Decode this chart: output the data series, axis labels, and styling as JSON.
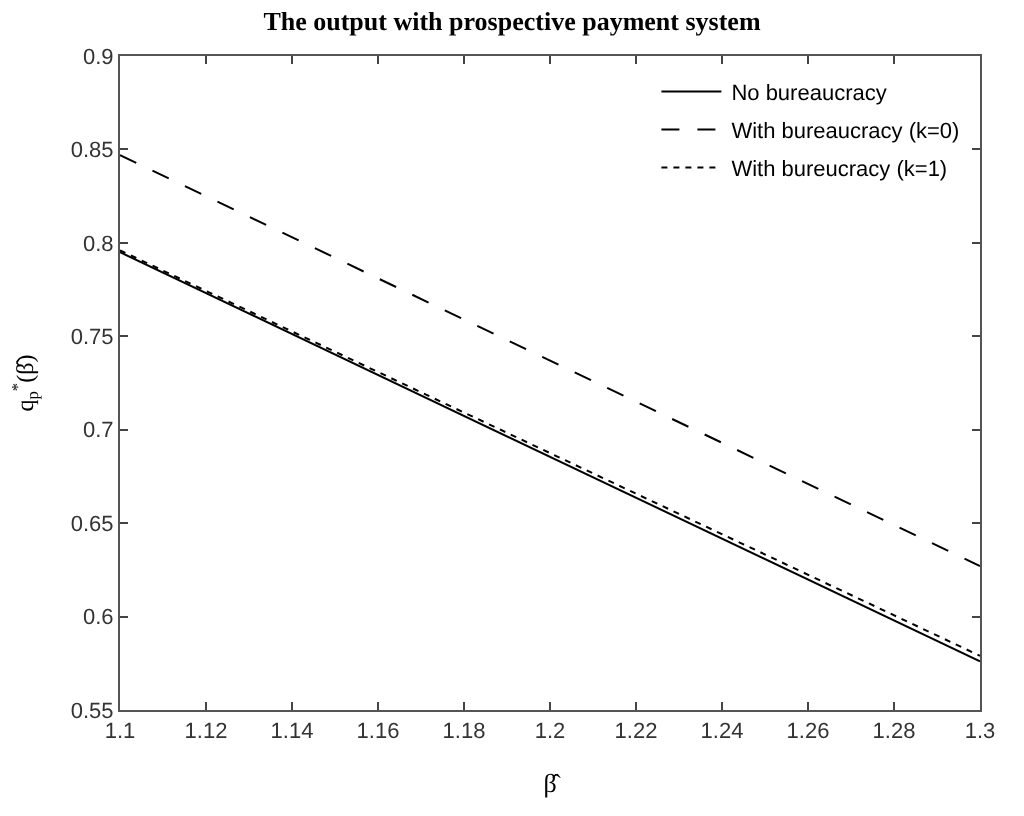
{
  "chart_data": {
    "type": "line",
    "title": "The output with prospective payment system",
    "xlabel": "β̂",
    "ylabel": "q$_{p}$$^{*}$(β̂)",
    "x": [
      1.1,
      1.3
    ],
    "series": [
      {
        "name": "No bureaucracy",
        "color": "#000000",
        "values": [
          0.795,
          0.576
        ],
        "line_style": "solid"
      },
      {
        "name": "With bureaucracy (k=0)",
        "color": "#000000",
        "values": [
          0.847,
          0.627
        ],
        "line_style": "dashed"
      },
      {
        "name": "With bureucracy (k=1)",
        "color": "#000000",
        "values": [
          0.796,
          0.579
        ],
        "line_style": "dotted"
      }
    ],
    "xlim": [
      1.1,
      1.3
    ],
    "xticks": [
      1.1,
      1.12,
      1.14,
      1.16,
      1.18,
      1.2,
      1.22,
      1.24,
      1.26,
      1.28,
      1.3
    ],
    "ylim": [
      0.55,
      0.9
    ],
    "yticks": [
      0.55,
      0.6,
      0.65,
      0.7,
      0.75,
      0.8,
      0.85,
      0.9
    ],
    "legend": "top right",
    "marker": "none"
  }
}
